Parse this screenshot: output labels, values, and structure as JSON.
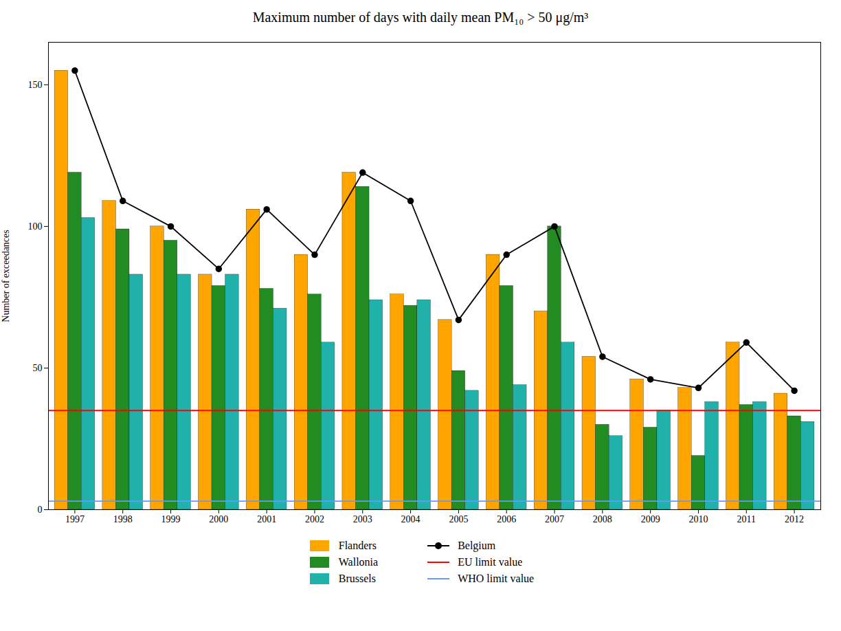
{
  "chart_data": {
    "type": "bar",
    "title": "Maximum number of days with daily mean PM₁₀ > 50 μg/m³",
    "ylabel": "Number of exceedances",
    "categories": [
      "1997",
      "1998",
      "1999",
      "2000",
      "2001",
      "2002",
      "2003",
      "2004",
      "2005",
      "2006",
      "2007",
      "2008",
      "2009",
      "2010",
      "2011",
      "2012"
    ],
    "series": [
      {
        "name": "Flanders",
        "type": "bar",
        "color": "#FFA500",
        "values": [
          155,
          109,
          100,
          83,
          106,
          90,
          119,
          76,
          67,
          90,
          70,
          54,
          46,
          43,
          59,
          41
        ]
      },
      {
        "name": "Wallonia",
        "type": "bar",
        "color": "#228B22",
        "values": [
          119,
          99,
          95,
          79,
          78,
          76,
          114,
          72,
          49,
          79,
          100,
          30,
          29,
          19,
          37,
          33
        ]
      },
      {
        "name": "Brussels",
        "type": "bar",
        "color": "#20B2AA",
        "values": [
          103,
          83,
          83,
          83,
          71,
          59,
          74,
          74,
          42,
          44,
          59,
          26,
          35,
          38,
          38,
          31
        ]
      },
      {
        "name": "Belgium",
        "type": "line",
        "marker": "circle",
        "color": "#000000",
        "values": [
          155,
          109,
          100,
          85,
          106,
          90,
          119,
          109,
          67,
          90,
          100,
          54,
          46,
          43,
          59,
          42
        ]
      },
      {
        "name": "EU limit value",
        "type": "hline",
        "color": "#FF0000",
        "value": 35
      },
      {
        "name": "WHO limit value",
        "type": "hline",
        "color": "#6699FF",
        "value": 3
      }
    ],
    "ylim": [
      0,
      165
    ],
    "yticks": [
      0,
      50,
      100,
      150
    ],
    "grid": false,
    "legend": "bottom"
  }
}
